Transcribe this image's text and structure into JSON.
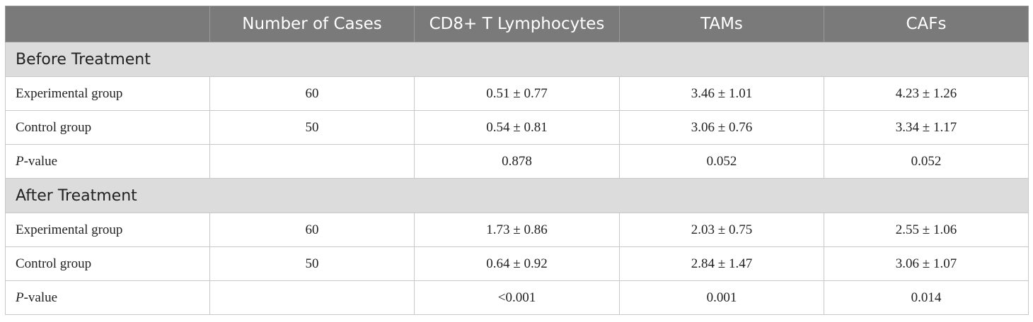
{
  "headers": [
    "",
    "Number of Cases",
    "CD8+ T Lymphocytes",
    "TAMs",
    "CAFs"
  ],
  "sections": [
    {
      "title": "Before Treatment",
      "rows": [
        {
          "label_italic": "",
          "label": "Experimental group",
          "cases": "60",
          "cd8": "0.51 ± 0.77",
          "tams": "3.46 ± 1.01",
          "cafs": "4.23 ± 1.26"
        },
        {
          "label_italic": "",
          "label": "Control group",
          "cases": "50",
          "cd8": "0.54 ± 0.81",
          "tams": "3.06 ± 0.76",
          "cafs": "3.34 ± 1.17"
        },
        {
          "label_italic": "P",
          "label": "-value",
          "cases": "",
          "cd8": "0.878",
          "tams": "0.052",
          "cafs": "0.052"
        }
      ]
    },
    {
      "title": "After Treatment",
      "rows": [
        {
          "label_italic": "",
          "label": "Experimental group",
          "cases": "60",
          "cd8": "1.73 ± 0.86",
          "tams": "2.03 ± 0.75",
          "cafs": "2.55 ± 1.06"
        },
        {
          "label_italic": "",
          "label": "Control group",
          "cases": "50",
          "cd8": "0.64 ± 0.92",
          "tams": "2.84 ± 1.47",
          "cafs": "3.06 ± 1.07"
        },
        {
          "label_italic": "P",
          "label": "-value",
          "cases": "",
          "cd8": "<0.001",
          "tams": "0.001",
          "cafs": "0.014"
        }
      ]
    }
  ]
}
